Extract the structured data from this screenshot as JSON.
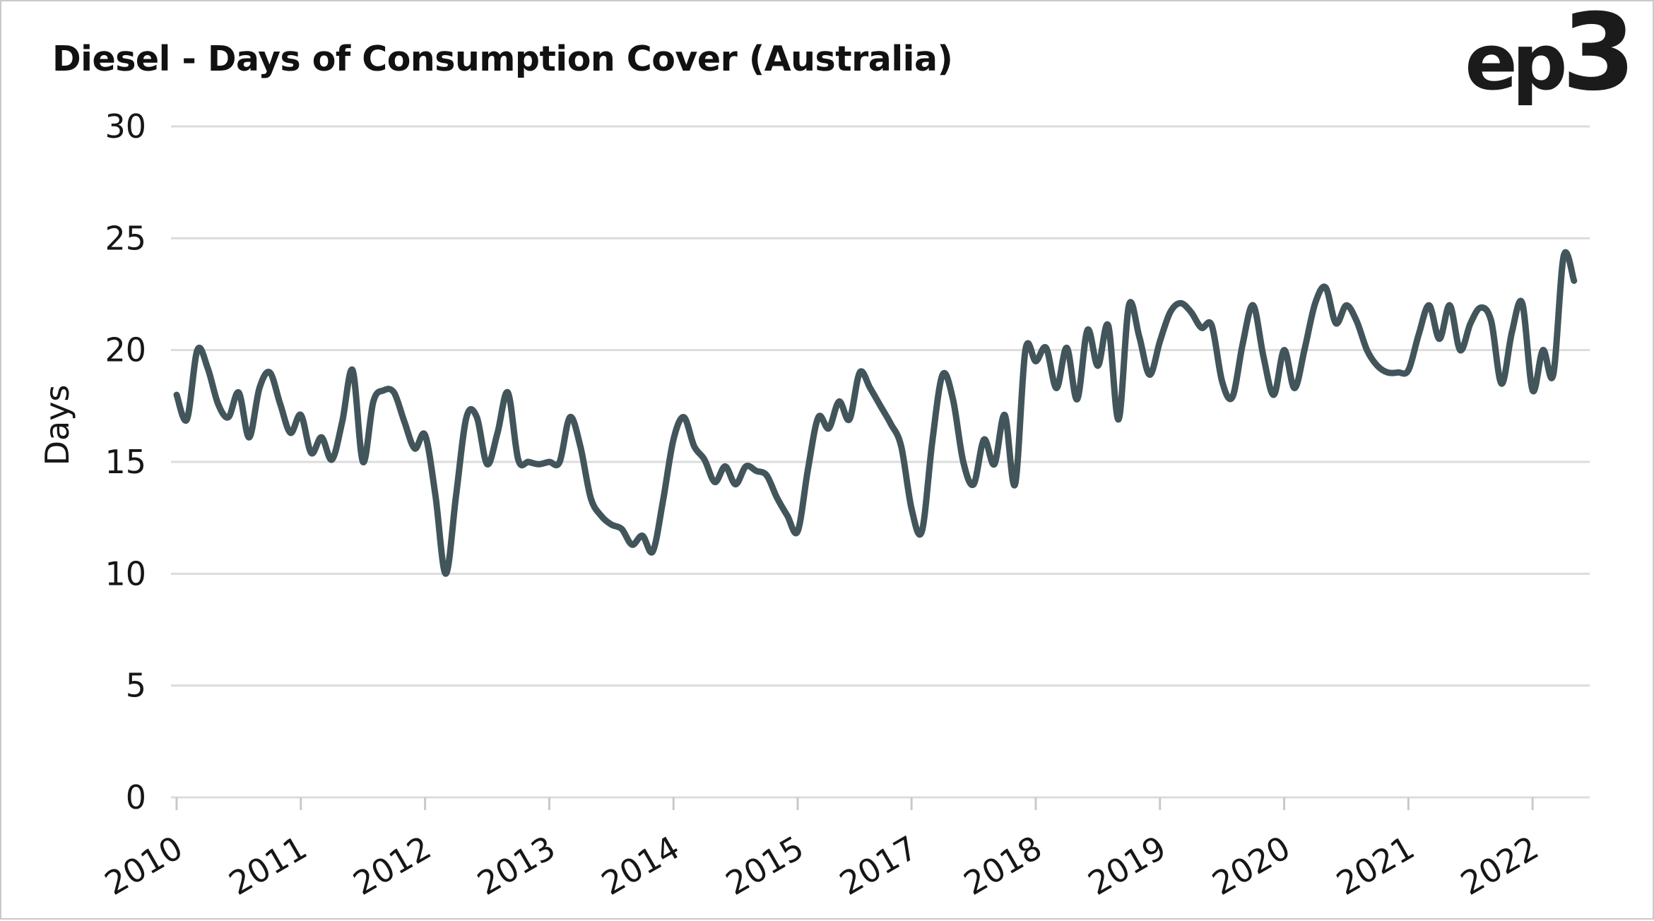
{
  "page": {
    "logo_ep": "ep",
    "logo_3": "3"
  },
  "style": {
    "line_color": "#42555a",
    "grid_color": "#dcdcdc",
    "tick_color": "#c9c9c9",
    "text_color": "#161616",
    "background": "#ffffff"
  },
  "chart_data": {
    "type": "line",
    "title": "Diesel - Days of Consumption Cover (Australia)",
    "xlabel": "",
    "ylabel": "Days",
    "ylim": [
      0,
      30
    ],
    "y_ticks": [
      0,
      5,
      10,
      15,
      20,
      25,
      30
    ],
    "grid": "horizontal-only",
    "legend": "none",
    "x_tick_label_rotation_deg": -30,
    "x_tick_labels": [
      {
        "label": "2010",
        "month_index": 0
      },
      {
        "label": "2011",
        "month_index": 12
      },
      {
        "label": "2012",
        "month_index": 24
      },
      {
        "label": "2013",
        "month_index": 36
      },
      {
        "label": "2014",
        "month_index": 48
      },
      {
        "label": "2015",
        "month_index": 60
      },
      {
        "label": "2017",
        "month_index": 71
      },
      {
        "label": "2018",
        "month_index": 83
      },
      {
        "label": "2019",
        "month_index": 95
      },
      {
        "label": "2020",
        "month_index": 107
      },
      {
        "label": "2021",
        "month_index": 119
      },
      {
        "label": "2022",
        "month_index": 131
      }
    ],
    "x": [
      "Jan 2010",
      "Feb 2010",
      "Mar 2010",
      "Apr 2010",
      "May 2010",
      "Jun 2010",
      "Jul 2010",
      "Aug 2010",
      "Sep 2010",
      "Oct 2010",
      "Nov 2010",
      "Dec 2010",
      "Jan 2011",
      "Feb 2011",
      "Mar 2011",
      "Apr 2011",
      "May 2011",
      "Jun 2011",
      "Jul 2011",
      "Aug 2011",
      "Sep 2011",
      "Oct 2011",
      "Nov 2011",
      "Dec 2011",
      "Jan 2012",
      "Feb 2012",
      "Mar 2012",
      "Apr 2012",
      "May 2012",
      "Jun 2012",
      "Jul 2012",
      "Aug 2012",
      "Sep 2012",
      "Oct 2012",
      "Nov 2012",
      "Dec 2012",
      "Jan 2013",
      "Feb 2013",
      "Mar 2013",
      "Apr 2013",
      "May 2013",
      "Jun 2013",
      "Jul 2013",
      "Aug 2013",
      "Sep 2013",
      "Oct 2013",
      "Nov 2013",
      "Dec 2013",
      "Jan 2014",
      "Feb 2014",
      "Mar 2014",
      "Apr 2014",
      "May 2014",
      "Jun 2014",
      "Jul 2014",
      "Aug 2014",
      "Sep 2014",
      "Oct 2014",
      "Nov 2014",
      "Dec 2014",
      "Jan 2015",
      "Feb 2015",
      "Mar 2015",
      "Apr 2015",
      "May 2015",
      "Jun 2015",
      "Jul 2015",
      "Aug 2015",
      "Sep 2015",
      "Oct 2015",
      "Nov 2015",
      "Jan 2017",
      "Feb 2017",
      "Mar 2017",
      "Apr 2017",
      "May 2017",
      "Jun 2017",
      "Jul 2017",
      "Aug 2017",
      "Sep 2017",
      "Oct 2017",
      "Nov 2017",
      "Dec 2017",
      "Jan 2018",
      "Feb 2018",
      "Mar 2018",
      "Apr 2018",
      "May 2018",
      "Jun 2018",
      "Jul 2018",
      "Aug 2018",
      "Sep 2018",
      "Oct 2018",
      "Nov 2018",
      "Dec 2018",
      "Jan 2019",
      "Feb 2019",
      "Mar 2019",
      "Apr 2019",
      "May 2019",
      "Jun 2019",
      "Jul 2019",
      "Aug 2019",
      "Sep 2019",
      "Oct 2019",
      "Nov 2019",
      "Dec 2019",
      "Jan 2020",
      "Feb 2020",
      "Mar 2020",
      "Apr 2020",
      "May 2020",
      "Jun 2020",
      "Jul 2020",
      "Aug 2020",
      "Sep 2020",
      "Oct 2020",
      "Nov 2020",
      "Dec 2020",
      "Jan 2021",
      "Feb 2021",
      "Mar 2021",
      "Apr 2021",
      "May 2021",
      "Jun 2021",
      "Jul 2021",
      "Aug 2021",
      "Sep 2021",
      "Oct 2021",
      "Nov 2021",
      "Dec 2021",
      "Jan 2022",
      "Feb 2022",
      "Mar 2022",
      "Apr 2022",
      "May 2022"
    ],
    "series": [
      {
        "name": "Diesel days of consumption cover",
        "color": "#42555a",
        "values": [
          18.0,
          16.9,
          20.0,
          19.2,
          17.6,
          17.0,
          18.1,
          16.1,
          18.3,
          19.0,
          17.6,
          16.3,
          17.1,
          15.4,
          16.1,
          15.1,
          16.8,
          19.1,
          15.0,
          17.7,
          18.2,
          18.1,
          16.8,
          15.6,
          16.2,
          13.5,
          10.0,
          13.5,
          17.0,
          17.0,
          14.9,
          16.3,
          18.1,
          15.1,
          15.0,
          14.9,
          15.0,
          15.0,
          17.0,
          15.7,
          13.4,
          12.6,
          12.2,
          12.0,
          11.3,
          11.7,
          11.0,
          13.3,
          16.0,
          17.0,
          15.7,
          15.1,
          14.1,
          14.8,
          14.0,
          14.8,
          14.6,
          14.4,
          13.4,
          12.6,
          11.9,
          14.7,
          17.0,
          16.5,
          17.7,
          16.9,
          19.0,
          18.3,
          17.5,
          16.7,
          15.7,
          12.9,
          11.9,
          15.9,
          18.9,
          17.8,
          15.0,
          14.0,
          16.0,
          14.9,
          17.1,
          14.0,
          20.0,
          19.5,
          20.1,
          18.3,
          20.1,
          17.8,
          20.9,
          19.3,
          21.1,
          16.9,
          22.0,
          20.6,
          18.9,
          20.4,
          21.7,
          22.1,
          21.7,
          21.0,
          21.1,
          18.6,
          17.9,
          20.3,
          22.0,
          19.7,
          18.0,
          20.0,
          18.3,
          20.1,
          22.1,
          22.8,
          21.2,
          22.0,
          21.3,
          20.0,
          19.3,
          19.0,
          19.0,
          19.1,
          20.7,
          22.0,
          20.5,
          22.0,
          20.0,
          21.2,
          21.9,
          21.3,
          18.5,
          20.8,
          22.1,
          18.2,
          20.0,
          18.9,
          24.2,
          23.1
        ]
      }
    ]
  }
}
